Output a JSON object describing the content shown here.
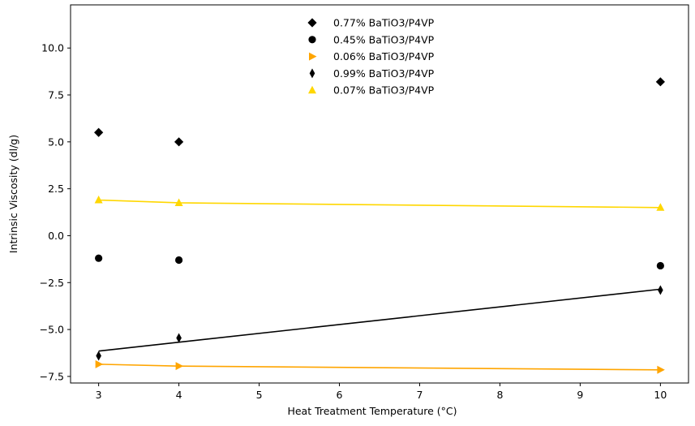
{
  "chart_data": {
    "type": "scatter",
    "title": "",
    "xlabel": "Heat Treatment Temperature (°C)",
    "ylabel": "Intrinsic Viscosity (dl/g)",
    "xlim": [
      2.65,
      10.35
    ],
    "ylim": [
      -7.85,
      12.3
    ],
    "xticks": [
      3,
      4,
      5,
      6,
      7,
      8,
      9,
      10
    ],
    "yticks": [
      -7.5,
      -5.0,
      -2.5,
      0.0,
      2.5,
      5.0,
      7.5,
      10.0
    ],
    "xtick_labels": [
      "3",
      "4",
      "5",
      "6",
      "7",
      "8",
      "9",
      "10"
    ],
    "ytick_labels": [
      "−7.5",
      "−5.0",
      "−2.5",
      "0.0",
      "2.5",
      "5.0",
      "7.5",
      "10.0"
    ],
    "grid": false,
    "legend_position": "top-center",
    "series": [
      {
        "name": "0.77% BaTiO3/P4VP",
        "marker": "diamond",
        "color": "#000000",
        "line": false,
        "x": [
          3,
          4,
          10
        ],
        "y": [
          5.5,
          5.0,
          8.2
        ]
      },
      {
        "name": "0.45% BaTiO3/P4VP",
        "marker": "circle",
        "color": "#000000",
        "line": false,
        "x": [
          3,
          4,
          10
        ],
        "y": [
          -1.2,
          -1.3,
          -1.6
        ]
      },
      {
        "name": "0.06% BaTiO3/P4VP",
        "marker": "triangle-right",
        "color": "#FFA500",
        "line": true,
        "x": [
          3,
          4,
          10
        ],
        "y": [
          -6.85,
          -6.95,
          -7.15
        ]
      },
      {
        "name": "0.99% BaTiO3/P4VP",
        "marker": "thin-diamond",
        "color": "#000000",
        "line": false,
        "x": [
          3,
          4,
          10
        ],
        "y": [
          -6.4,
          -5.45,
          -2.9
        ]
      },
      {
        "name": "0.07% BaTiO3/P4VP",
        "marker": "triangle-up",
        "color": "#FFD700",
        "line": true,
        "x": [
          3,
          4,
          10
        ],
        "y": [
          1.9,
          1.75,
          1.5
        ]
      }
    ],
    "trend_lines": [
      {
        "color": "#000000",
        "x": [
          3,
          10
        ],
        "y": [
          -6.15,
          -2.85
        ]
      }
    ]
  }
}
